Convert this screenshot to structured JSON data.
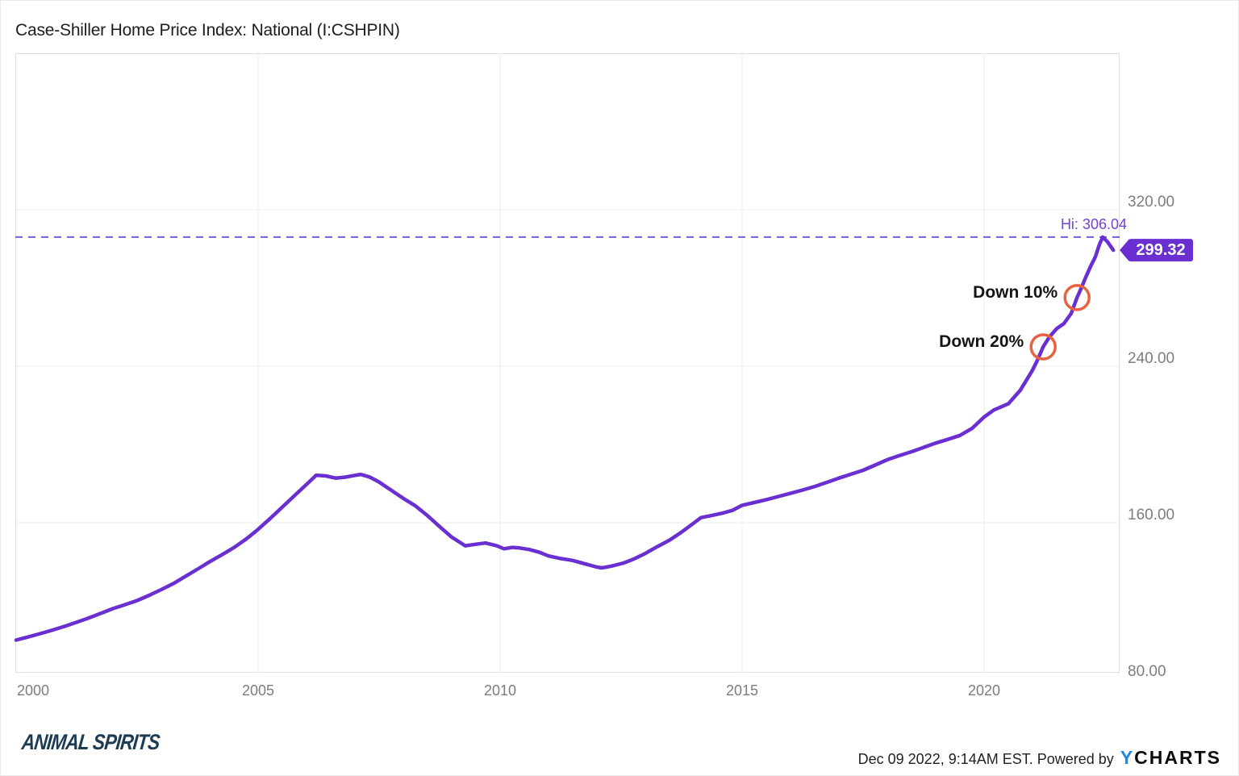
{
  "title": "Case-Shiller Home Price Index: National (I:CSHPIN)",
  "colors": {
    "accent_purple": "#6a2fd0",
    "dashed_purple": "#7e57dd",
    "hi_text_purple": "#7440d8",
    "circle_orange": "#e8623f",
    "grid": "#ededf0",
    "plot_border": "#dde0e4",
    "tick_text": "#7b7d80",
    "title_text": "#1c1d1f",
    "annotation_text": "#141414",
    "badge_text": "#ffffff",
    "brand_navy": "#1d3c53",
    "ycharts_blue": "#1e88e5",
    "ycharts_black": "#0d0d0d"
  },
  "footer": {
    "brand": "ANIMAL SPIRITS",
    "timestamp": "Dec 09 2022, 9:14AM EST.",
    "powered_by": "Powered by",
    "ycharts_y": "Y",
    "ycharts_rest": "CHARTS"
  },
  "chart_data": {
    "type": "line",
    "title": "Case-Shiller Home Price Index: National (I:CSHPIN)",
    "xlabel": "",
    "ylabel": "",
    "x_range": [
      2000,
      2022.8
    ],
    "y_range": [
      80,
      400
    ],
    "grid": true,
    "legend": false,
    "x_ticks": [
      {
        "year": 2000,
        "label": "2000",
        "gridline": false
      },
      {
        "year": 2005,
        "label": "2005",
        "gridline": true
      },
      {
        "year": 2010,
        "label": "2010",
        "gridline": true
      },
      {
        "year": 2015,
        "label": "2015",
        "gridline": true
      },
      {
        "year": 2020,
        "label": "2020",
        "gridline": true
      }
    ],
    "y_ticks": [
      {
        "value": 320,
        "label": "320.00",
        "gridline": true
      },
      {
        "value": 240,
        "label": "240.00",
        "gridline": true
      },
      {
        "value": 160,
        "label": "160.00",
        "gridline": true
      },
      {
        "value": 80,
        "label": "80.00",
        "gridline": false
      }
    ],
    "high_line": {
      "value": 306.04,
      "label": "Hi: 306.04"
    },
    "last_value": {
      "value": 299.32,
      "label": "299.32"
    },
    "annotations": [
      {
        "label": "Down 10%",
        "year": 2021.92,
        "value": 275.1
      },
      {
        "label": "Down 20%",
        "year": 2021.22,
        "value": 249.9
      }
    ],
    "series": [
      {
        "name": "Case-Shiller Home Price Index: National",
        "points": [
          [
            2000.0,
            100.0
          ],
          [
            2000.25,
            101.6
          ],
          [
            2000.5,
            103.3
          ],
          [
            2000.75,
            105.1
          ],
          [
            2001.0,
            107.0
          ],
          [
            2001.25,
            109.1
          ],
          [
            2001.5,
            111.3
          ],
          [
            2001.75,
            113.7
          ],
          [
            2002.0,
            116.1
          ],
          [
            2002.25,
            118.1
          ],
          [
            2002.5,
            120.2
          ],
          [
            2002.75,
            122.9
          ],
          [
            2003.0,
            125.8
          ],
          [
            2003.25,
            128.9
          ],
          [
            2003.5,
            132.6
          ],
          [
            2003.75,
            136.3
          ],
          [
            2004.0,
            140.1
          ],
          [
            2004.25,
            143.6
          ],
          [
            2004.5,
            147.3
          ],
          [
            2004.75,
            151.6
          ],
          [
            2005.0,
            156.6
          ],
          [
            2005.25,
            162.2
          ],
          [
            2005.5,
            168.0
          ],
          [
            2005.75,
            173.8
          ],
          [
            2006.0,
            179.6
          ],
          [
            2006.2,
            184.3
          ],
          [
            2006.4,
            183.9
          ],
          [
            2006.6,
            182.8
          ],
          [
            2006.8,
            183.3
          ],
          [
            2007.0,
            184.2
          ],
          [
            2007.12,
            184.7
          ],
          [
            2007.3,
            183.4
          ],
          [
            2007.5,
            180.8
          ],
          [
            2007.75,
            176.6
          ],
          [
            2008.0,
            172.4
          ],
          [
            2008.25,
            168.6
          ],
          [
            2008.5,
            163.6
          ],
          [
            2008.75,
            158.0
          ],
          [
            2009.0,
            152.6
          ],
          [
            2009.28,
            148.2
          ],
          [
            2009.5,
            149.0
          ],
          [
            2009.7,
            149.6
          ],
          [
            2009.93,
            148.2
          ],
          [
            2010.08,
            146.7
          ],
          [
            2010.25,
            147.4
          ],
          [
            2010.4,
            147.1
          ],
          [
            2010.6,
            146.3
          ],
          [
            2010.8,
            145.0
          ],
          [
            2011.0,
            143.0
          ],
          [
            2011.25,
            141.7
          ],
          [
            2011.5,
            140.7
          ],
          [
            2011.75,
            139.0
          ],
          [
            2012.0,
            137.3
          ],
          [
            2012.1,
            136.9
          ],
          [
            2012.3,
            137.8
          ],
          [
            2012.55,
            139.4
          ],
          [
            2012.75,
            141.3
          ],
          [
            2013.0,
            144.3
          ],
          [
            2013.25,
            147.8
          ],
          [
            2013.5,
            151.1
          ],
          [
            2013.75,
            155.2
          ],
          [
            2014.0,
            159.8
          ],
          [
            2014.15,
            162.6
          ],
          [
            2014.35,
            163.6
          ],
          [
            2014.6,
            164.9
          ],
          [
            2014.8,
            166.3
          ],
          [
            2015.0,
            168.9
          ],
          [
            2015.25,
            170.3
          ],
          [
            2015.5,
            171.8
          ],
          [
            2015.75,
            173.4
          ],
          [
            2016.0,
            175.0
          ],
          [
            2016.25,
            176.7
          ],
          [
            2016.5,
            178.5
          ],
          [
            2016.75,
            180.6
          ],
          [
            2017.0,
            182.8
          ],
          [
            2017.25,
            184.8
          ],
          [
            2017.5,
            186.8
          ],
          [
            2017.75,
            189.5
          ],
          [
            2018.0,
            192.2
          ],
          [
            2018.25,
            194.3
          ],
          [
            2018.5,
            196.3
          ],
          [
            2018.75,
            198.5
          ],
          [
            2019.0,
            200.7
          ],
          [
            2019.25,
            202.6
          ],
          [
            2019.5,
            204.6
          ],
          [
            2019.75,
            208.2
          ],
          [
            2020.0,
            214.0
          ],
          [
            2020.2,
            217.6
          ],
          [
            2020.35,
            219.2
          ],
          [
            2020.5,
            220.8
          ],
          [
            2020.75,
            227.8
          ],
          [
            2021.0,
            238.0
          ],
          [
            2021.1,
            243.0
          ],
          [
            2021.22,
            249.9
          ],
          [
            2021.35,
            255.0
          ],
          [
            2021.5,
            259.2
          ],
          [
            2021.65,
            261.8
          ],
          [
            2021.8,
            267.0
          ],
          [
            2021.92,
            275.1
          ],
          [
            2022.0,
            279.5
          ],
          [
            2022.1,
            285.5
          ],
          [
            2022.2,
            291.0
          ],
          [
            2022.3,
            296.0
          ],
          [
            2022.38,
            302.0
          ],
          [
            2022.45,
            306.04
          ],
          [
            2022.55,
            303.6
          ],
          [
            2022.67,
            299.32
          ]
        ]
      }
    ]
  }
}
